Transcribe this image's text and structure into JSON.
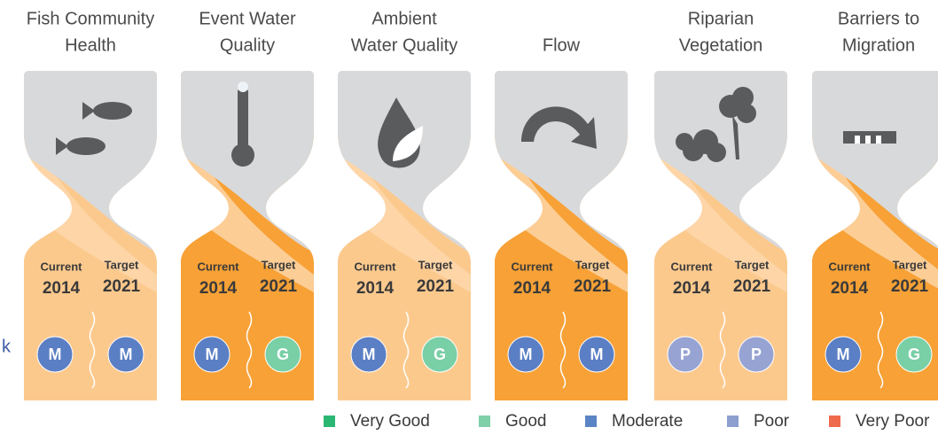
{
  "panels": [
    {
      "title_lines": [
        "Fish Community",
        "Health"
      ],
      "current_label": "Current",
      "current_year": "2014",
      "target_label": "Target",
      "target_year": "2021",
      "current_rating": "M",
      "target_rating": "M",
      "color": "#fcc98d"
    },
    {
      "title_lines": [
        "Event Water",
        "Quality"
      ],
      "current_label": "Current",
      "current_year": "2014",
      "target_label": "Target",
      "target_year": "2021",
      "current_rating": "M",
      "target_rating": "G",
      "color": "#f7a136"
    },
    {
      "title_lines": [
        "Ambient",
        "Water Quality"
      ],
      "current_label": "Current",
      "current_year": "2014",
      "target_label": "Target",
      "target_year": "2021",
      "current_rating": "M",
      "target_rating": "G",
      "color": "#fcc98d"
    },
    {
      "title_lines": [
        "Flow"
      ],
      "current_label": "Current",
      "current_year": "2014",
      "target_label": "Target",
      "target_year": "2021",
      "current_rating": "M",
      "target_rating": "M",
      "color": "#f7a136"
    },
    {
      "title_lines": [
        "Riparian",
        "Vegetation"
      ],
      "current_label": "Current",
      "current_year": "2014",
      "target_label": "Target",
      "target_year": "2021",
      "current_rating": "P",
      "target_rating": "P",
      "color": "#fcc98d"
    },
    {
      "title_lines": [
        "Barriers to",
        "Migration"
      ],
      "current_label": "Current",
      "current_year": "2014",
      "target_label": "Target",
      "target_year": "2021",
      "current_rating": "M",
      "target_rating": "G",
      "color": "#f7a136"
    }
  ],
  "rating_colors": {
    "M": "#5b7fc4",
    "G": "#79cfa6",
    "P": "#97a3d2"
  },
  "legend": [
    {
      "label": "Very Good",
      "color": "#2bb673"
    },
    {
      "label": "Good",
      "color": "#7fcfa9"
    },
    {
      "label": "Moderate",
      "color": "#5b84c4"
    },
    {
      "label": "Poor",
      "color": "#8c9fcf"
    },
    {
      "label": "Very Poor",
      "color": "#ef6a4c"
    }
  ],
  "edge_text": "k"
}
